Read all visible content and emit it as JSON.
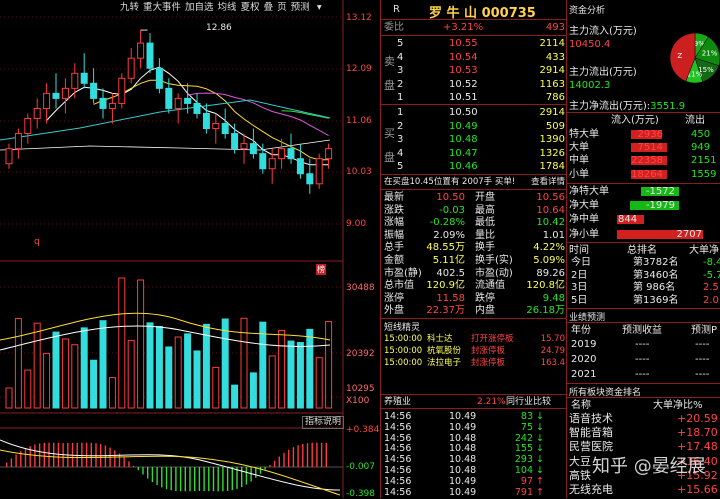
{
  "toolbar": {
    "buttons": [
      "九转",
      "重大事件",
      "加自选",
      "均线",
      "夏权",
      "叠",
      "页",
      "预测"
    ],
    "icon_down": "chevron-down-icon"
  },
  "chart": {
    "price_ticks": [
      "13.12",
      "12.09",
      "11.06",
      "10.03",
      "9.00"
    ],
    "high_label": "12.86",
    "q_marker": "q",
    "mark_label": "榜",
    "vol_ticks": [
      "30488",
      "20392",
      "10295",
      "X100"
    ],
    "indicator_btn": "指标说明",
    "macd_ticks": [
      "+0.384",
      "-0.007",
      "-0.398"
    ]
  },
  "chart_data": {
    "type": "candlestick",
    "price_range": [
      8.5,
      13.2
    ],
    "candles": [
      [
        10.2,
        10.6,
        10.1,
        10.5
      ],
      [
        10.5,
        10.9,
        10.3,
        10.8
      ],
      [
        10.8,
        11.2,
        10.6,
        11.1
      ],
      [
        11.1,
        11.5,
        10.9,
        11.3
      ],
      [
        11.3,
        11.8,
        11.0,
        11.6
      ],
      [
        11.6,
        12.0,
        11.3,
        11.5
      ],
      [
        11.5,
        11.9,
        11.2,
        11.7
      ],
      [
        11.7,
        12.2,
        11.5,
        12.0
      ],
      [
        12.0,
        12.4,
        11.7,
        11.8
      ],
      [
        11.8,
        12.1,
        11.4,
        11.5
      ],
      [
        11.5,
        11.7,
        11.1,
        11.3
      ],
      [
        11.3,
        11.6,
        11.0,
        11.4
      ],
      [
        11.4,
        12.0,
        11.3,
        11.9
      ],
      [
        11.9,
        12.5,
        11.8,
        12.3
      ],
      [
        12.3,
        12.86,
        12.1,
        12.6
      ],
      [
        12.6,
        12.8,
        12.0,
        12.1
      ],
      [
        12.1,
        12.3,
        11.6,
        11.7
      ],
      [
        11.7,
        11.9,
        11.2,
        11.3
      ],
      [
        11.3,
        11.6,
        11.0,
        11.5
      ],
      [
        11.5,
        11.8,
        11.2,
        11.4
      ],
      [
        11.4,
        11.6,
        11.1,
        11.2
      ],
      [
        11.2,
        11.4,
        10.8,
        10.9
      ],
      [
        10.9,
        11.2,
        10.6,
        11.0
      ],
      [
        11.0,
        11.3,
        10.7,
        10.8
      ],
      [
        10.8,
        11.0,
        10.4,
        10.5
      ],
      [
        10.5,
        10.8,
        10.2,
        10.6
      ],
      [
        10.6,
        10.9,
        10.3,
        10.4
      ],
      [
        10.4,
        10.6,
        10.0,
        10.1
      ],
      [
        10.1,
        10.5,
        9.8,
        10.3
      ],
      [
        10.3,
        10.7,
        10.1,
        10.5
      ],
      [
        10.5,
        10.8,
        10.2,
        10.3
      ],
      [
        10.3,
        10.6,
        9.9,
        10.0
      ],
      [
        10.0,
        10.3,
        9.6,
        9.8
      ],
      [
        9.8,
        10.4,
        9.7,
        10.3
      ],
      [
        10.3,
        10.6,
        10.1,
        10.5
      ]
    ]
  },
  "stock": {
    "title": "罗 牛 山 000735",
    "r_label": "R",
    "webi_label": "委比",
    "webi_value": "+3.21%",
    "webi_num": "493",
    "sell_side": "卖\n\n盘",
    "buy_side": "买\n\n盘",
    "sells": [
      {
        "n": "5",
        "p": "10.55",
        "v": "2114"
      },
      {
        "n": "4",
        "p": "10.54",
        "v": "433"
      },
      {
        "n": "3",
        "p": "10.53",
        "v": "2914"
      },
      {
        "n": "2",
        "p": "10.52",
        "v": "1163"
      },
      {
        "n": "1",
        "p": "10.51",
        "v": "786"
      }
    ],
    "buys": [
      {
        "n": "1",
        "p": "10.50",
        "v": "2914"
      },
      {
        "n": "2",
        "p": "10.49",
        "v": "509"
      },
      {
        "n": "3",
        "p": "10.48",
        "v": "1390"
      },
      {
        "n": "4",
        "p": "10.47",
        "v": "1326"
      },
      {
        "n": "5",
        "p": "10.46",
        "v": "1784"
      }
    ],
    "tape_text": "在买盘10.45位置有 2007手 买单!",
    "tape_btn": "查看详情",
    "stats": [
      {
        "l": "最新",
        "v": "10.50",
        "vc": "red",
        "l2": "开盘",
        "v2": "10.56",
        "v2c": "red"
      },
      {
        "l": "涨跌",
        "v": "-0.03",
        "vc": "green",
        "l2": "最高",
        "v2": "10.64",
        "v2c": "red"
      },
      {
        "l": "涨幅",
        "v": "-0.28%",
        "vc": "green",
        "l2": "最低",
        "v2": "10.42",
        "v2c": "green"
      },
      {
        "l": "振幅",
        "v": "2.09%",
        "vc": "white",
        "l2": "量比",
        "v2": "1.01",
        "v2c": "white"
      },
      {
        "l": "总手",
        "v": "48.55万",
        "vc": "yellow",
        "l2": "换手",
        "v2": "4.22%",
        "v2c": "yellow"
      },
      {
        "l": "金额",
        "v": "5.11亿",
        "vc": "yellow",
        "l2": "换手(实)",
        "v2": "5.09%",
        "v2c": "yellow"
      },
      {
        "l": "市盈(静)",
        "v": "402.5",
        "vc": "white",
        "l2": "市盈(动)",
        "v2": "89.26",
        "v2c": "white"
      },
      {
        "l": "总市值",
        "v": "120.9亿",
        "vc": "yellow",
        "l2": "流通值",
        "v2": "120.8亿",
        "v2c": "yellow"
      },
      {
        "l": "涨停",
        "v": "11.58",
        "vc": "red",
        "l2": "跌停",
        "v2": "9.48",
        "v2c": "green"
      },
      {
        "l": "外盘",
        "v": "22.37万",
        "vc": "red",
        "l2": "内盘",
        "v2": "26.18万",
        "v2c": "green"
      }
    ],
    "news_title": "短线精灵",
    "news": [
      {
        "t": "15:00:00",
        "n": "科士达",
        "a": "打开涨停板",
        "v": "15.70"
      },
      {
        "t": "15:00:00",
        "n": "杭氧股份",
        "a": "封涨停板",
        "v": "24.79"
      },
      {
        "t": "15:00:00",
        "n": "法拉电子",
        "a": "封涨停板",
        "v": "163.4"
      }
    ],
    "sector_label": "养殖业",
    "sector_pct": "2.21%",
    "sector_btn": "同行业比较",
    "ticks": [
      {
        "t": "14:56",
        "p": "10.49",
        "v": "83",
        "d": "down"
      },
      {
        "t": "14:56",
        "p": "10.49",
        "v": "75",
        "d": "down"
      },
      {
        "t": "14:56",
        "p": "10.48",
        "v": "242",
        "d": "down"
      },
      {
        "t": "14:56",
        "p": "10.48",
        "v": "155",
        "d": "down"
      },
      {
        "t": "14:56",
        "p": "10.48",
        "v": "293",
        "d": "down"
      },
      {
        "t": "14:56",
        "p": "10.48",
        "v": "104",
        "d": "down"
      },
      {
        "t": "14:56",
        "p": "10.49",
        "v": "97",
        "d": "up"
      },
      {
        "t": "14:56",
        "p": "10.49",
        "v": "791",
        "d": "up"
      }
    ]
  },
  "fund": {
    "title": "资金分析",
    "inflow_label": "主力流入(万元)",
    "inflow_value": "10450.4",
    "outflow_label": "主力流出(万元)",
    "outflow_value": "14002.3",
    "net_label": "主力净流出(万元):",
    "net_value": "3551.9",
    "pie": [
      {
        "label": "9%",
        "value": 9,
        "color": "#19a619"
      },
      {
        "label": "21%",
        "value": 21,
        "color": "#0f8a0f"
      },
      {
        "label": "15%",
        "value": 15,
        "color": "#146914"
      },
      {
        "label": "11%",
        "value": 11,
        "color": "#22c222"
      },
      {
        "label": "Z",
        "value": 44,
        "color": "#cc2020"
      }
    ],
    "flow_head": [
      "流入(万元)",
      "流出"
    ],
    "flow_rows": [
      {
        "l": "特大单",
        "in": "2936",
        "out": "450",
        "inPct": 0.85
      },
      {
        "l": "大单",
        "in": "7514",
        "out": "949",
        "inPct": 1.0
      },
      {
        "l": "中单",
        "in": "22358",
        "out": "2151",
        "inPct": 1.0
      },
      {
        "l": "小单",
        "in": "18264",
        "out": "1559",
        "inPct": 1.0
      }
    ],
    "net_rows": [
      {
        "l": "净特大单",
        "v": "-1572",
        "neg": true,
        "frac": 0.55
      },
      {
        "l": "净大单",
        "v": "-1979",
        "neg": true,
        "frac": 0.7
      },
      {
        "l": "净中单",
        "v": "844",
        "neg": false,
        "frac": 0.3
      },
      {
        "l": "净小单",
        "v": "2707",
        "neg": false,
        "frac": 0.95
      }
    ],
    "rank_head": [
      "时间",
      "总排名",
      "大单净"
    ],
    "ranks": [
      {
        "t": "今日",
        "r": "第3782名",
        "v": "-8.4"
      },
      {
        "t": "2日",
        "r": "第3460名",
        "v": "-5.7"
      },
      {
        "t": "3日",
        "r": "第 986名",
        "v": "2.5"
      },
      {
        "t": "5日",
        "r": "第1369名",
        "v": "2.0"
      }
    ],
    "forecast_title": "业绩预测",
    "forecast_head": [
      "年份",
      "预测收益",
      "预测P"
    ],
    "forecast_rows": [
      {
        "y": "2019",
        "a": "----",
        "b": "----"
      },
      {
        "y": "2020",
        "a": "----",
        "b": "----"
      },
      {
        "y": "2021",
        "a": "----",
        "b": "----"
      }
    ],
    "sector_title": "所有板块资金排名",
    "sector_head": [
      "名称",
      "大单净比%"
    ],
    "sectors": [
      {
        "n": "语音技术",
        "v": "+20.59"
      },
      {
        "n": "智能音箱",
        "v": "+18.70"
      },
      {
        "n": "民营医院",
        "v": "+17.48"
      },
      {
        "n": "大豆",
        "v": "+16.40"
      },
      {
        "n": "高铁",
        "v": "+15.92"
      },
      {
        "n": "无线充电",
        "v": "+15.66"
      }
    ],
    "watermark": "知乎 @晏经展"
  }
}
